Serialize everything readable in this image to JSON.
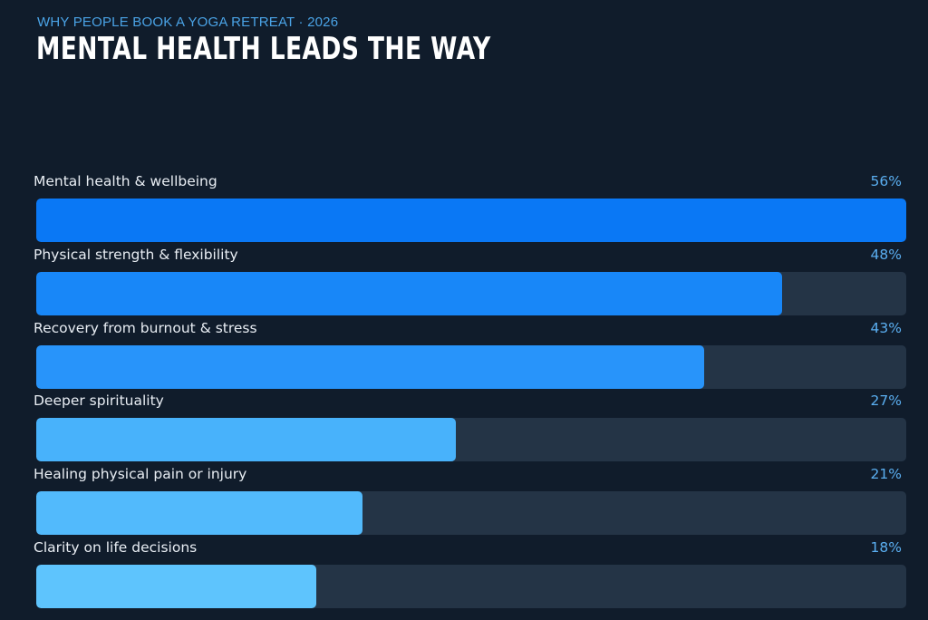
{
  "header": {
    "kicker": "WHY PEOPLE BOOK A YOGA RETREAT · 2026",
    "title": "MENTAL HEALTH LEADS THE WAY"
  },
  "chart_data": {
    "type": "bar",
    "orientation": "horizontal",
    "categories": [
      "Mental health & wellbeing",
      "Physical strength & flexibility",
      "Recovery from burnout & stress",
      "Deeper spirituality",
      "Healing physical pain or injury",
      "Clarity on life decisions"
    ],
    "values": [
      56,
      48,
      43,
      27,
      21,
      18
    ],
    "value_labels": [
      "56%",
      "48%",
      "43%",
      "27%",
      "21%",
      "18%"
    ],
    "xlim": [
      0,
      56
    ],
    "bar_colors": [
      "#0a78f5",
      "#1887f8",
      "#2894fa",
      "#48b2fb",
      "#52bafc",
      "#5ec4fd"
    ],
    "track_color": "#243446",
    "grid": false,
    "legend": "none"
  }
}
